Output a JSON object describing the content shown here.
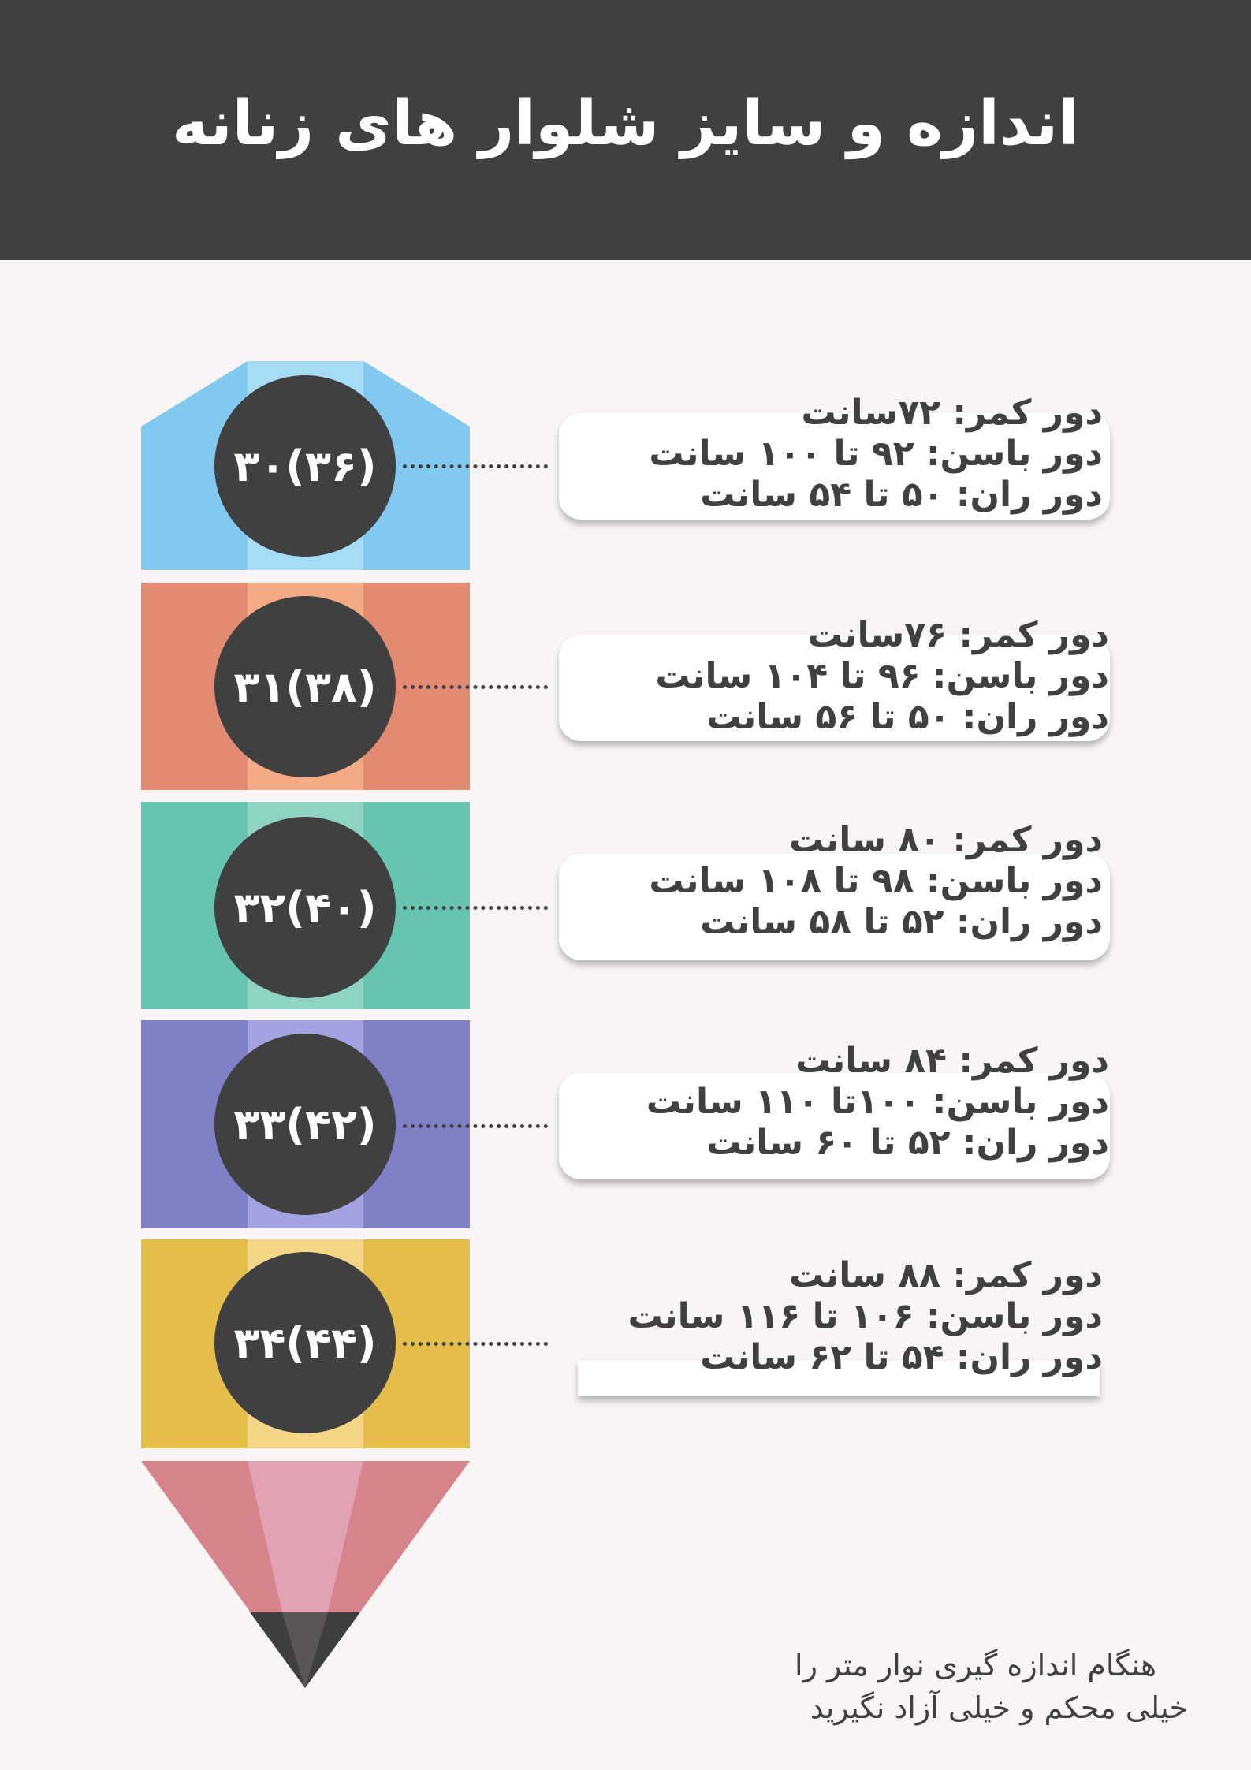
{
  "title": "اندازه و سایز شلوار های زنانه",
  "colors": {
    "header": "#404040",
    "background": "#f8f5f4",
    "segments": [
      "#82c9ef",
      "#e38a72",
      "#67c4b0",
      "#7f80c5",
      "#e4bd4a"
    ],
    "segment_stripes": [
      "#a6dcf6",
      "#f4aa84",
      "#8fd3c3",
      "#a3a3e2",
      "#f5d586"
    ],
    "tip": "#d6838b",
    "tip_stripe": "#e1a3b3",
    "lead": "#3f3f3f"
  },
  "sizes": [
    {
      "size": "۳۰(۳۶)",
      "waist": "دور کمر:  ۷۲سانت",
      "hip": "دور باسن:  ۹۲ تا ۱۰۰ سانت",
      "thigh": "دور ران:  ۵۰ تا ۵۴ سانت"
    },
    {
      "size": "۳۱(۳۸)",
      "waist": "دور کمر:  ۷۶سانت",
      "hip": "دور باسن:  ۹۶ تا ۱۰۴ سانت",
      "thigh": "دور ران:  ۵۰ تا ۵۶ سانت"
    },
    {
      "size": "۳۲(۴۰)",
      "waist": "دور کمر:  ۸۰ سانت",
      "hip": "دور باسن:  ۹۸ تا ۱۰۸ سانت",
      "thigh": "دور ران:  ۵۲ تا ۵۸ سانت"
    },
    {
      "size": "۳۳(۴۲)",
      "waist": "دور کمر:  ۸۴ سانت",
      "hip": "دور باسن:  ۱۰۰تا ۱۱۰ سانت",
      "thigh": "دور ران:  ۵۲ تا ۶۰ سانت"
    },
    {
      "size": "۳۴(۴۴)",
      "waist": "دور کمر:  ۸۸ سانت",
      "hip": "دور باسن:  ۱۰۶ تا ۱۱۶ سانت",
      "thigh": "دور ران:  ۵۴ تا ۶۲ سانت"
    }
  ],
  "footer": {
    "line1": "هنگام اندازه گیری نوار متر را",
    "line2": "خیلی محکم و خیلی آزاد نگیرید"
  }
}
